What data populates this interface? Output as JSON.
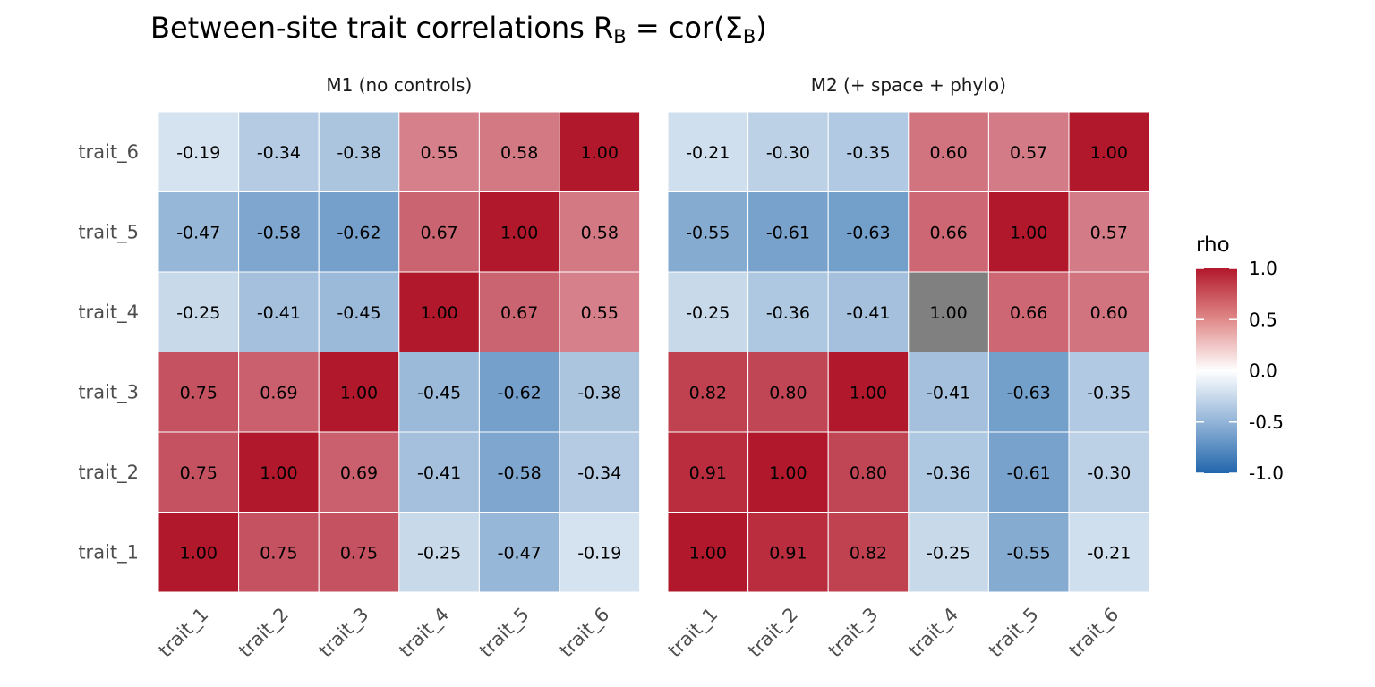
{
  "title": {
    "prefix": "Between-site trait correlations R",
    "sub1": "B",
    "middle": " = cor(Σ",
    "sub2": "B",
    "suffix": ")"
  },
  "chart_data": {
    "type": "heatmap",
    "traits": [
      "trait_1",
      "trait_2",
      "trait_3",
      "trait_4",
      "trait_5",
      "trait_6"
    ],
    "panels": [
      {
        "name": "M1 (no controls)",
        "matrix": [
          [
            1.0,
            0.75,
            0.75,
            -0.25,
            -0.47,
            -0.19
          ],
          [
            0.75,
            1.0,
            0.69,
            -0.41,
            -0.58,
            -0.34
          ],
          [
            0.75,
            0.69,
            1.0,
            -0.45,
            -0.62,
            -0.38
          ],
          [
            -0.25,
            -0.41,
            -0.45,
            1.0,
            0.67,
            0.55
          ],
          [
            -0.47,
            -0.58,
            -0.62,
            0.67,
            1.0,
            0.58
          ],
          [
            -0.19,
            -0.34,
            -0.38,
            0.55,
            0.58,
            1.0
          ]
        ],
        "missing": []
      },
      {
        "name": "M2 (+ space + phylo)",
        "matrix": [
          [
            1.0,
            0.91,
            0.82,
            -0.25,
            -0.55,
            -0.21
          ],
          [
            0.91,
            1.0,
            0.8,
            -0.36,
            -0.61,
            -0.3
          ],
          [
            0.82,
            0.8,
            1.0,
            -0.41,
            -0.63,
            -0.35
          ],
          [
            -0.25,
            -0.36,
            -0.41,
            1.0,
            0.66,
            0.6
          ],
          [
            -0.55,
            -0.61,
            -0.63,
            0.66,
            1.0,
            0.57
          ],
          [
            -0.21,
            -0.3,
            -0.35,
            0.6,
            0.57,
            1.0
          ]
        ],
        "missing": [
          [
            3,
            3
          ]
        ]
      }
    ],
    "legend": {
      "title": "rho",
      "limits": [
        -1.0,
        1.0
      ],
      "ticks": [
        "1.0",
        "0.5",
        "0.0",
        "-0.5",
        "-1.0"
      ],
      "placement": "right"
    },
    "colors": {
      "low": "#2166ac",
      "mid": "#ffffff",
      "high": "#b2182b",
      "na": "#808080",
      "grid": "#ffffff"
    }
  }
}
